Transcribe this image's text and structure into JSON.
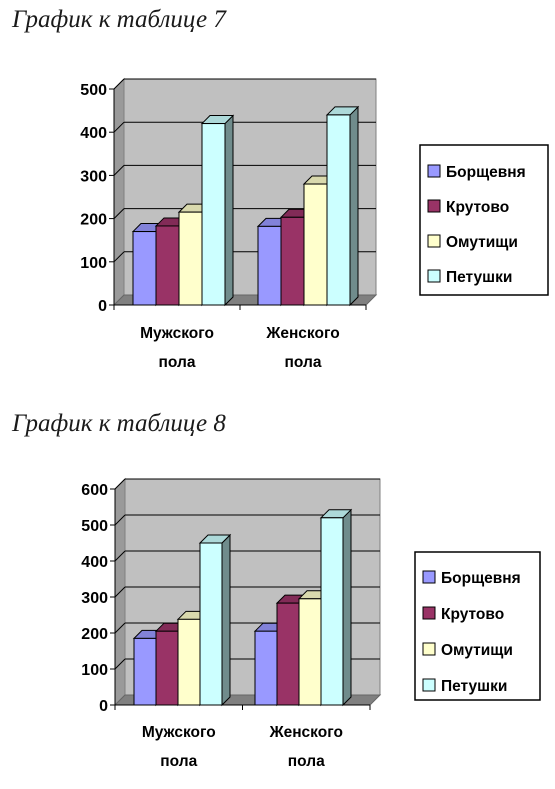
{
  "headings": {
    "chart7": "График к таблице 7",
    "chart8": "График к таблице 8"
  },
  "colors": {
    "series": [
      "#9999ff",
      "#993366",
      "#ffffcc",
      "#ccffff"
    ],
    "plot_bg": "#c0c0c0",
    "grid": "#000000"
  },
  "chart_data": [
    {
      "type": "bar",
      "title": "График к таблице 7",
      "categories": [
        "Мужского пола",
        "Женского пола"
      ],
      "category_lines": [
        [
          "Мужского",
          "пола"
        ],
        [
          "Женского",
          "пола"
        ]
      ],
      "series": [
        {
          "name": "Борщевня",
          "values": [
            170,
            182
          ]
        },
        {
          "name": "Крутово",
          "values": [
            183,
            203
          ]
        },
        {
          "name": "Омутищи",
          "values": [
            215,
            280
          ]
        },
        {
          "name": "Петушки",
          "values": [
            420,
            440
          ]
        }
      ],
      "yticks": [
        "0",
        "100",
        "200",
        "300",
        "400",
        "500"
      ],
      "ylim": [
        0,
        500
      ],
      "grid": true,
      "legend": "right",
      "style": "3d-clustered-column"
    },
    {
      "type": "bar",
      "title": "График к таблице 8",
      "categories": [
        "Мужского пола",
        "Женского пола"
      ],
      "category_lines": [
        [
          "Мужского",
          "пола"
        ],
        [
          "Женского",
          "пола"
        ]
      ],
      "series": [
        {
          "name": "Борщевня",
          "values": [
            185,
            205
          ]
        },
        {
          "name": "Крутово",
          "values": [
            205,
            283
          ]
        },
        {
          "name": "Омутищи",
          "values": [
            238,
            295
          ]
        },
        {
          "name": "Петушки",
          "values": [
            450,
            520
          ]
        }
      ],
      "yticks": [
        "0",
        "100",
        "200",
        "300",
        "400",
        "500",
        "600"
      ],
      "ylim": [
        0,
        600
      ],
      "grid": true,
      "legend": "right",
      "style": "3d-clustered-column"
    }
  ]
}
